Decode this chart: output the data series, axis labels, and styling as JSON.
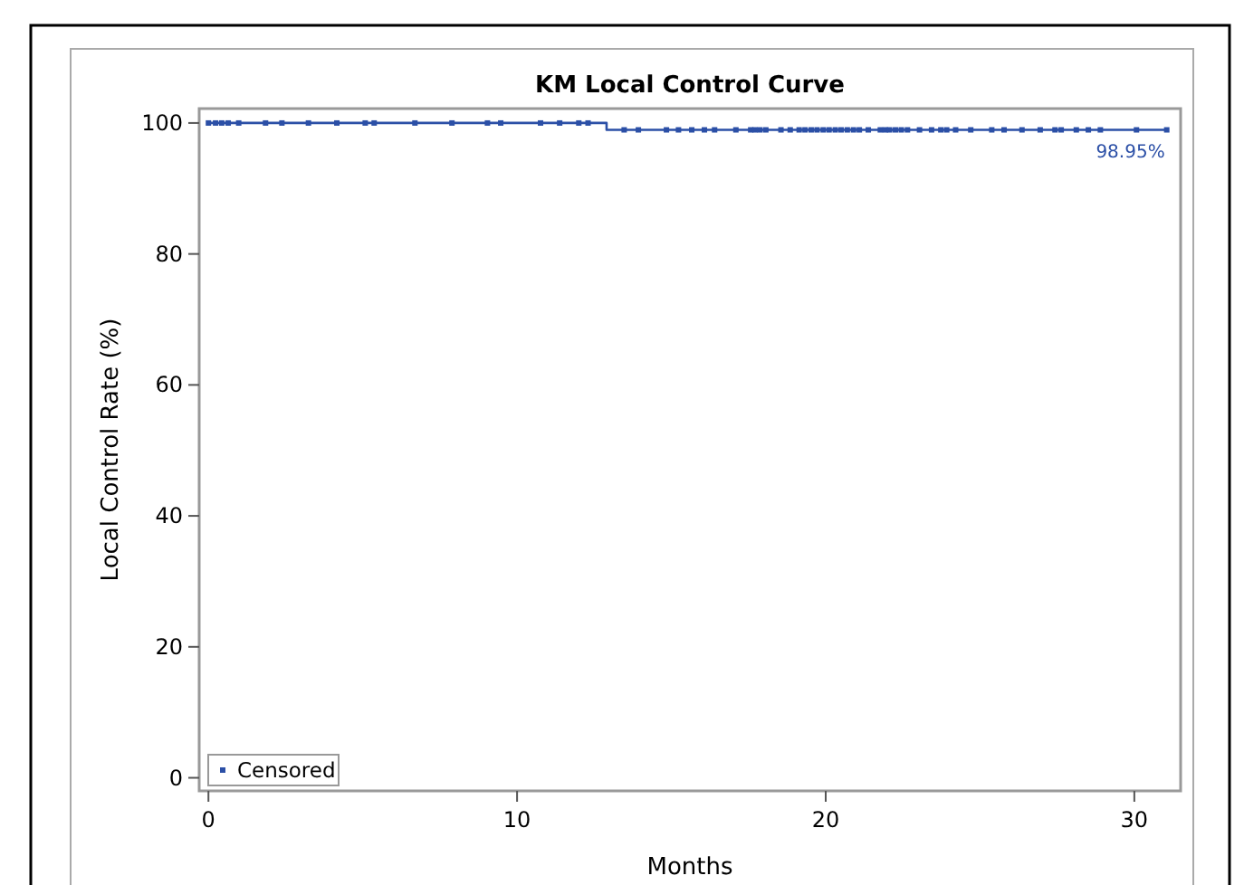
{
  "chart_data": {
    "type": "step",
    "title": "KM Local Control Curve",
    "xlabel": "Months",
    "ylabel": "Local Control Rate (%)",
    "xlim": [
      -0.3,
      31.5
    ],
    "xticks": [
      0,
      10,
      20,
      30
    ],
    "ylim": [
      -2,
      102.2
    ],
    "yticks": [
      0,
      20,
      40,
      60,
      80,
      100
    ],
    "grid": false,
    "legend": "bottom left",
    "series": [
      {
        "color": "#2b4fa6",
        "x": [
          0,
          12.9,
          31.05
        ],
        "values": [
          100,
          98.95,
          98.95
        ],
        "marker": "none"
      },
      {
        "type": "scatter",
        "name": "Censored",
        "color": "#2b4fa6",
        "marker": "square",
        "x": [
          0,
          0.23,
          0.43,
          0.64,
          0.98,
          1.85,
          2.38,
          3.24,
          4.16,
          5.08,
          5.37,
          6.69,
          7.89,
          9.04,
          9.47,
          10.76,
          11.38,
          12.0,
          12.3,
          13.47,
          13.93,
          14.84,
          15.23,
          15.66,
          16.07,
          16.4,
          17.09,
          17.57,
          17.71,
          17.87,
          18.06,
          18.55,
          18.85,
          19.14,
          19.33,
          19.53,
          19.72,
          19.92,
          20.11,
          20.31,
          20.5,
          20.7,
          20.9,
          21.09,
          21.38,
          21.77,
          21.93,
          22.07,
          22.26,
          22.45,
          22.65,
          23.04,
          23.43,
          23.73,
          23.92,
          24.21,
          24.7,
          25.38,
          25.78,
          26.36,
          26.95,
          27.43,
          27.63,
          28.12,
          28.51,
          28.9,
          30.07,
          31.05
        ],
        "values": [
          100,
          100,
          100,
          100,
          100,
          100,
          100,
          100,
          100,
          100,
          100,
          100,
          100,
          100,
          100,
          100,
          100,
          100,
          100,
          98.95,
          98.95,
          98.95,
          98.95,
          98.95,
          98.95,
          98.95,
          98.95,
          98.95,
          98.95,
          98.95,
          98.95,
          98.95,
          98.95,
          98.95,
          98.95,
          98.95,
          98.95,
          98.95,
          98.95,
          98.95,
          98.95,
          98.95,
          98.95,
          98.95,
          98.95,
          98.95,
          98.95,
          98.95,
          98.95,
          98.95,
          98.95,
          98.95,
          98.95,
          98.95,
          98.95,
          98.95,
          98.95,
          98.95,
          98.95,
          98.95,
          98.95,
          98.95,
          98.95,
          98.95,
          98.95,
          98.95,
          98.95,
          98.95
        ]
      }
    ],
    "annotations": [
      {
        "text": "98.95%",
        "x": 31.05,
        "y": 98.95
      }
    ]
  }
}
